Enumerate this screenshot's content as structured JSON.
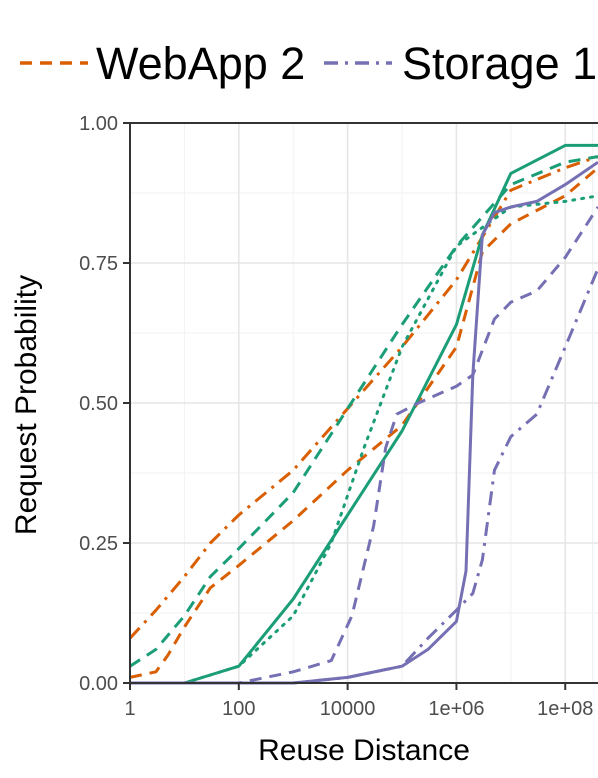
{
  "chart_data": {
    "type": "line",
    "title": "",
    "xlabel": "Reuse Distance",
    "ylabel": "Request Probability",
    "x_scale": "log10",
    "xlim": [
      1,
      400000000
    ],
    "ylim": [
      0,
      1
    ],
    "x_ticks": [
      1,
      100,
      10000,
      1000000,
      100000000
    ],
    "x_tick_labels": [
      "1",
      "100",
      "10000",
      "1e+06",
      "1e+08"
    ],
    "y_ticks": [
      0,
      0.25,
      0.5,
      0.75,
      1
    ],
    "y_tick_labels": [
      "0.00",
      "0.25",
      "0.50",
      "0.75",
      "1.00"
    ],
    "grid": true,
    "legend_position": "top",
    "legend": [
      {
        "label": "WebApp 2",
        "color": "#d95f02",
        "dash": "dashed"
      },
      {
        "label": "Storage 1",
        "color": "#7570b3",
        "dash": "dashdot"
      }
    ],
    "series": [
      {
        "group": "WebApp 2",
        "color": "#d95f02",
        "dash": "dashed",
        "x": [
          1,
          3,
          5,
          10,
          30,
          100,
          1000,
          10000,
          100000,
          1000000,
          3000000,
          10000000,
          100000000,
          400000000
        ],
        "y": [
          0.01,
          0.02,
          0.05,
          0.1,
          0.17,
          0.21,
          0.29,
          0.38,
          0.46,
          0.6,
          0.77,
          0.82,
          0.87,
          0.92
        ]
      },
      {
        "group": "WebApp 2",
        "color": "#d95f02",
        "dash": "dashdot",
        "x": [
          1,
          3,
          10,
          30,
          100,
          1000,
          10000,
          100000,
          1000000,
          10000000,
          100000000,
          400000000
        ],
        "y": [
          0.08,
          0.13,
          0.19,
          0.25,
          0.3,
          0.38,
          0.49,
          0.6,
          0.72,
          0.88,
          0.92,
          0.94
        ]
      },
      {
        "group": "Green",
        "color": "#1b9e77",
        "dash": "dashed",
        "x": [
          1,
          3,
          10,
          30,
          100,
          1000,
          10000,
          100000,
          1000000,
          10000000,
          100000000,
          400000000
        ],
        "y": [
          0.03,
          0.06,
          0.12,
          0.19,
          0.24,
          0.34,
          0.49,
          0.64,
          0.78,
          0.89,
          0.93,
          0.94
        ]
      },
      {
        "group": "Green",
        "color": "#1b9e77",
        "dash": "dotted",
        "x": [
          1,
          10,
          100,
          1000,
          5000,
          20000,
          100000,
          1000000,
          10000000,
          100000000,
          400000000
        ],
        "y": [
          0.0,
          0.0,
          0.03,
          0.12,
          0.25,
          0.42,
          0.6,
          0.78,
          0.85,
          0.86,
          0.87
        ]
      },
      {
        "group": "Green",
        "color": "#1b9e77",
        "dash": "solid",
        "x": [
          1,
          10,
          100,
          1000,
          10000,
          100000,
          1000000,
          3000000,
          10000000,
          100000000,
          400000000
        ],
        "y": [
          0.0,
          0.0,
          0.03,
          0.15,
          0.3,
          0.45,
          0.64,
          0.8,
          0.91,
          0.96,
          0.96
        ]
      },
      {
        "group": "Storage 1",
        "color": "#7570b3",
        "dash": "dashdot",
        "x": [
          1,
          10,
          100,
          1000,
          10000,
          100000,
          300000,
          1000000,
          2000000,
          3000000,
          5000000,
          10000000,
          30000000,
          100000000,
          400000000
        ],
        "y": [
          0.0,
          0.0,
          0.0,
          0.0,
          0.01,
          0.03,
          0.08,
          0.13,
          0.16,
          0.22,
          0.38,
          0.44,
          0.48,
          0.6,
          0.74
        ]
      },
      {
        "group": "Storage 1",
        "color": "#7570b3",
        "dash": "dashed",
        "x": [
          1,
          100,
          1000,
          5000,
          12000,
          30000,
          50000,
          80000,
          200000,
          1000000,
          2000000,
          5000000,
          10000000,
          30000000,
          100000000,
          400000000
        ],
        "y": [
          0.0,
          0.0,
          0.02,
          0.04,
          0.12,
          0.28,
          0.42,
          0.48,
          0.5,
          0.53,
          0.55,
          0.65,
          0.68,
          0.7,
          0.76,
          0.85
        ]
      },
      {
        "group": "Storage 1",
        "color": "#7570b3",
        "dash": "solid",
        "x": [
          1,
          100,
          1000,
          10000,
          100000,
          300000,
          1000000,
          1500000,
          2000000,
          3000000,
          5000000,
          10000000,
          30000000,
          100000000,
          400000000
        ],
        "y": [
          0.0,
          0.0,
          0.0,
          0.01,
          0.03,
          0.06,
          0.11,
          0.2,
          0.55,
          0.8,
          0.84,
          0.85,
          0.86,
          0.89,
          0.93
        ]
      }
    ]
  }
}
